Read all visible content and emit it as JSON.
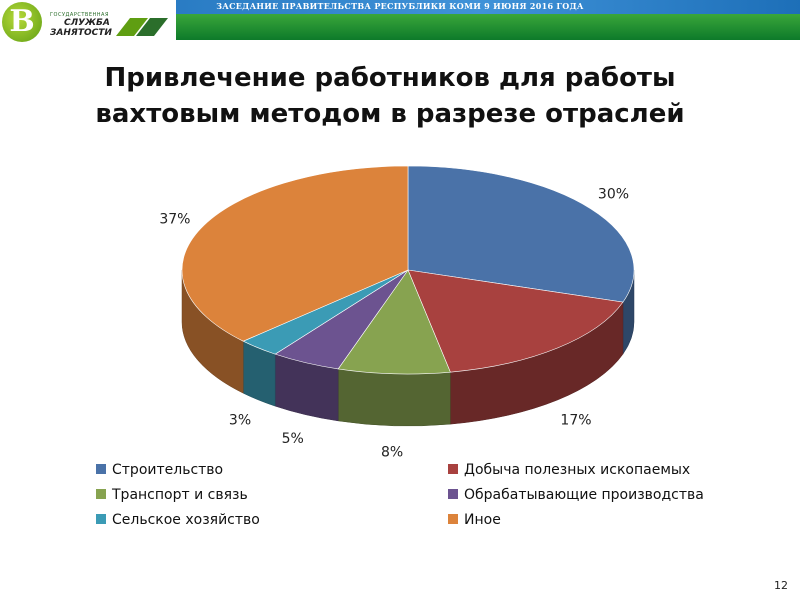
{
  "header": {
    "banner_text": "ЗАСЕДАНИЕ ПРАВИТЕЛЬСТВА РЕСПУБЛИКИ КОМИ 9 ИЮНЯ 2016 ГОДА",
    "logo": {
      "small_text": "ГОСУДАРСТВЕННАЯ",
      "line1": "СЛУЖБА",
      "line2": "ЗАНЯТОСТИ"
    }
  },
  "slide": {
    "title_line1": "Привлечение работников для работы",
    "title_line2": "вахтовым методом в разрезе отраслей",
    "page_number": "12"
  },
  "chart_data": {
    "type": "pie",
    "title": "Привлечение работников для работы вахтовым методом в разрезе отраслей",
    "legend_position": "bottom",
    "slices": [
      {
        "label": "Строительство",
        "value": 30,
        "data_label": "30%",
        "color": "#4a72a8"
      },
      {
        "label": "Добыча полезных ископаемых",
        "value": 17,
        "data_label": "17%",
        "color": "#a8413f"
      },
      {
        "label": "Транспорт и связь",
        "value": 8,
        "data_label": "8%",
        "color": "#87a350"
      },
      {
        "label": "Обрабатывающие производства",
        "value": 5,
        "data_label": "5%",
        "color": "#6c5390"
      },
      {
        "label": "Сельское хозяйство",
        "value": 3,
        "data_label": "3%",
        "color": "#3b9bb5"
      },
      {
        "label": "Иное",
        "value": 37,
        "data_label": "37%",
        "color": "#dc833b"
      }
    ]
  }
}
